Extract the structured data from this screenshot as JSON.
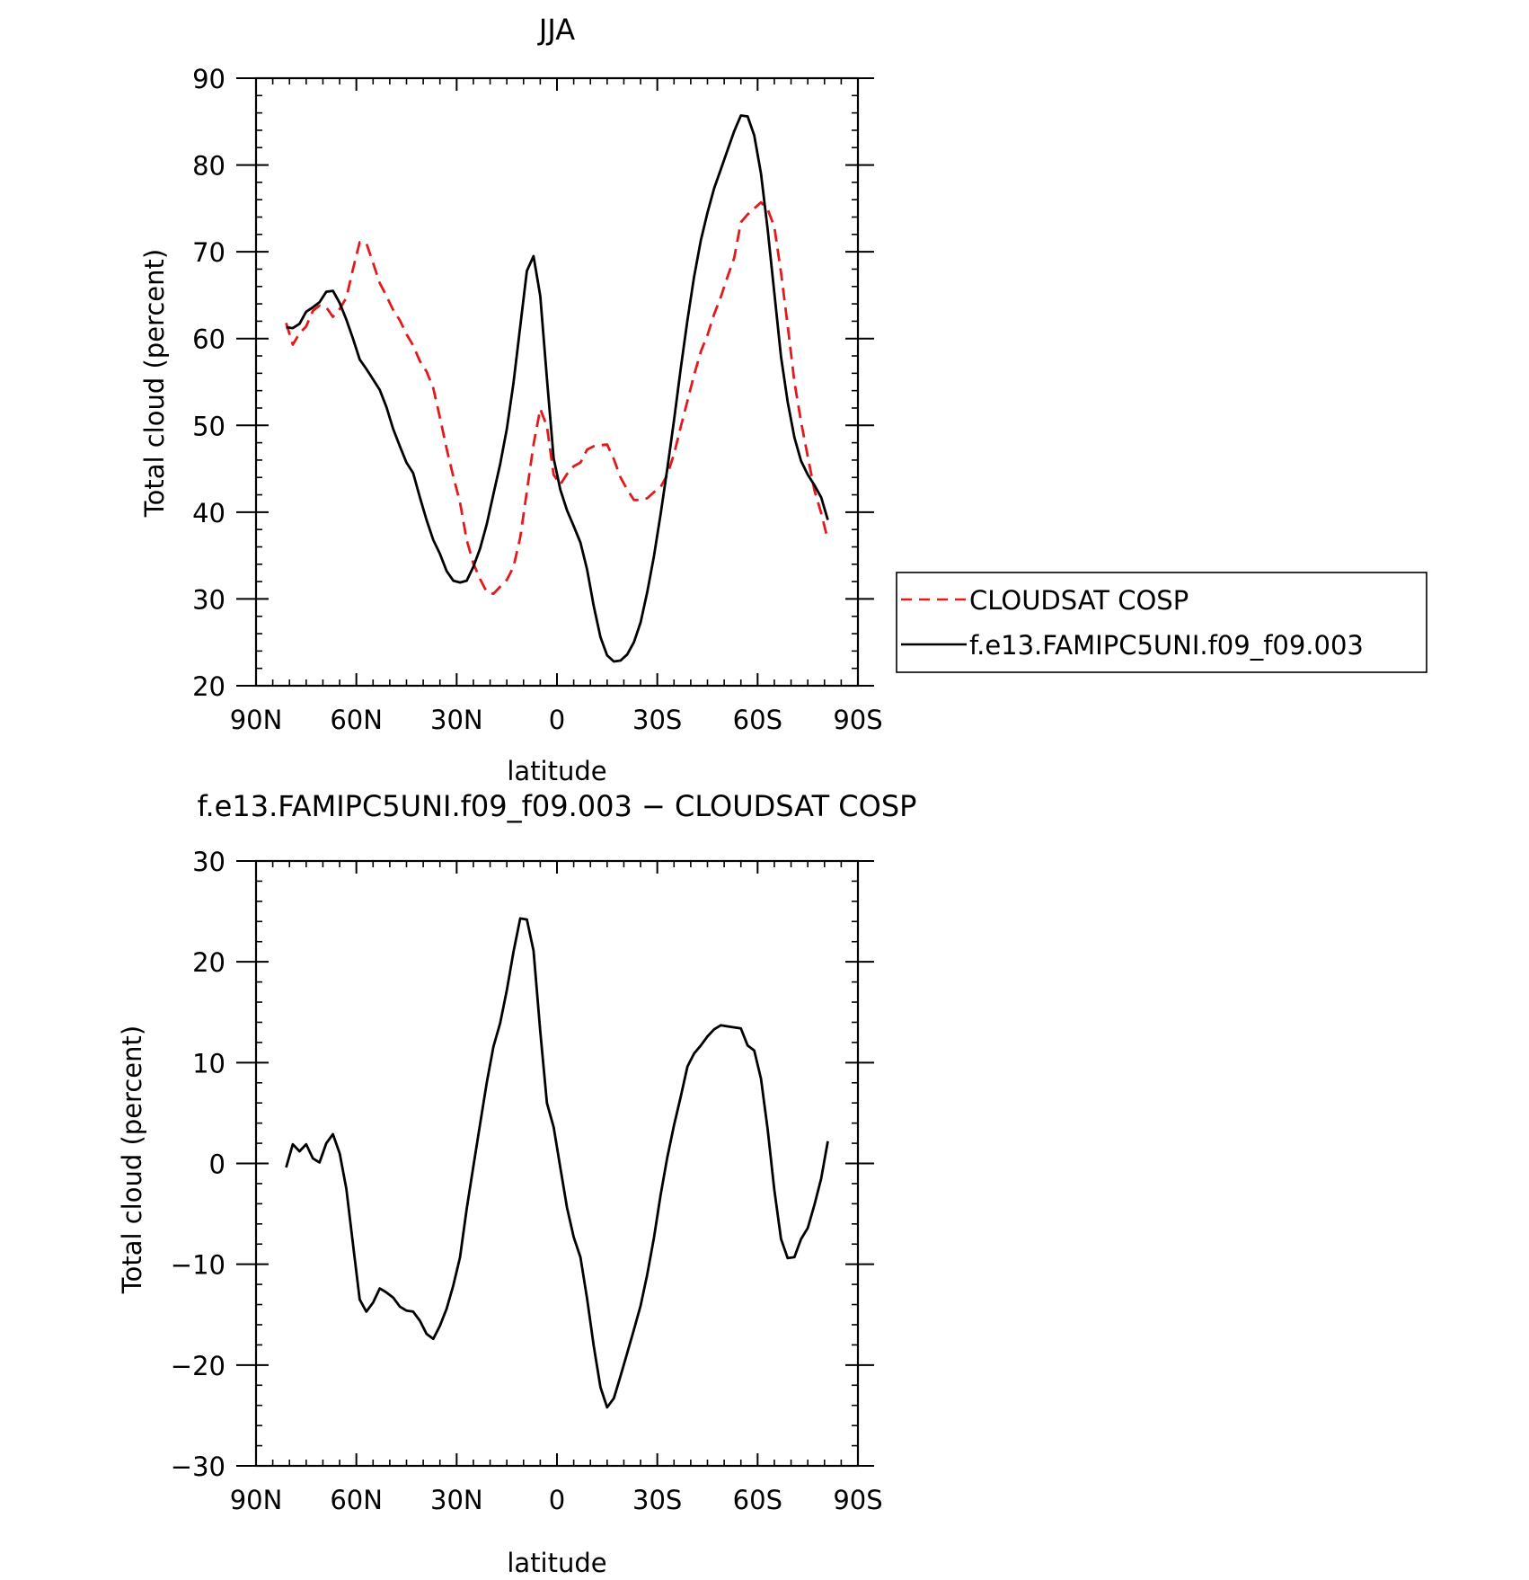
{
  "chart_data": [
    {
      "type": "line",
      "title": "JJA",
      "xlabel": "latitude",
      "ylabel": "Total cloud (percent)",
      "xlim": [
        90,
        -90
      ],
      "ylim": [
        20,
        90
      ],
      "xticks": [
        90,
        60,
        30,
        0,
        -30,
        -60,
        -90
      ],
      "xtick_labels": [
        "90N",
        "60N",
        "30N",
        "0",
        "30S",
        "60S",
        "90S"
      ],
      "yticks": [
        20,
        30,
        40,
        50,
        60,
        70,
        80,
        90
      ],
      "ytick_labels": [
        "20",
        "30",
        "40",
        "50",
        "60",
        "70",
        "80",
        "90"
      ],
      "legend": "right",
      "grid": false,
      "series": [
        {
          "name": "CLOUDSAT COSP",
          "color": "#e31a1c",
          "dash": "dashed",
          "points": [
            [
              81,
              61.8
            ],
            [
              79,
              59.3
            ],
            [
              77,
              60.6
            ],
            [
              75,
              61.4
            ],
            [
              73,
              63.2
            ],
            [
              71,
              63.8
            ],
            [
              69,
              63.6
            ],
            [
              67,
              62.5
            ],
            [
              65,
              63.4
            ],
            [
              63,
              64.7
            ],
            [
              61,
              68.0
            ],
            [
              59,
              71.1
            ],
            [
              57,
              71.0
            ],
            [
              55,
              68.7
            ],
            [
              53,
              66.4
            ],
            [
              51,
              64.9
            ],
            [
              49,
              63.3
            ],
            [
              47,
              62.1
            ],
            [
              45,
              60.5
            ],
            [
              43,
              59.2
            ],
            [
              41,
              57.4
            ],
            [
              39,
              56.2
            ],
            [
              37,
              54.3
            ],
            [
              35,
              50.9
            ],
            [
              33,
              47.3
            ],
            [
              31,
              44.1
            ],
            [
              29,
              41.1
            ],
            [
              27,
              36.8
            ],
            [
              25,
              34.1
            ],
            [
              23,
              32.3
            ],
            [
              21,
              30.8
            ],
            [
              19,
              30.6
            ],
            [
              17,
              31.4
            ],
            [
              15,
              32.2
            ],
            [
              13,
              33.7
            ],
            [
              11,
              37.1
            ],
            [
              9,
              42.4
            ],
            [
              7,
              47.8
            ],
            [
              5,
              51.9
            ],
            [
              3,
              49.9
            ],
            [
              1,
              44.3
            ],
            [
              -1,
              43.2
            ],
            [
              -3,
              44.4
            ],
            [
              -5,
              45.3
            ],
            [
              -7,
              45.7
            ],
            [
              -9,
              47.2
            ],
            [
              -11,
              47.6
            ],
            [
              -13,
              47.7
            ],
            [
              -15,
              47.8
            ],
            [
              -17,
              46.1
            ],
            [
              -19,
              44.0
            ],
            [
              -21,
              42.6
            ],
            [
              -23,
              41.4
            ],
            [
              -25,
              41.4
            ],
            [
              -27,
              41.6
            ],
            [
              -29,
              42.3
            ],
            [
              -31,
              42.9
            ],
            [
              -33,
              44.3
            ],
            [
              -35,
              46.7
            ],
            [
              -37,
              49.8
            ],
            [
              -39,
              52.8
            ],
            [
              -41,
              55.8
            ],
            [
              -43,
              58.5
            ],
            [
              -45,
              60.4
            ],
            [
              -47,
              62.8
            ],
            [
              -49,
              64.8
            ],
            [
              -51,
              67.1
            ],
            [
              -53,
              69.3
            ],
            [
              -55,
              73.4
            ],
            [
              -57,
              74.3
            ],
            [
              -59,
              75.0
            ],
            [
              -61,
              75.7
            ],
            [
              -63,
              74.9
            ],
            [
              -65,
              72.9
            ],
            [
              -67,
              67.6
            ],
            [
              -69,
              61.5
            ],
            [
              -71,
              55.0
            ],
            [
              -73,
              50.4
            ],
            [
              -75,
              46.4
            ],
            [
              -77,
              42.5
            ],
            [
              -79,
              39.9
            ],
            [
              -81,
              36.8
            ]
          ]
        },
        {
          "name": "f.e13.FAMIPC5UNI.f09_f09.003",
          "color": "#000000",
          "dash": "solid",
          "points": [
            [
              81,
              61.3
            ],
            [
              79,
              61.2
            ],
            [
              77,
              61.7
            ],
            [
              75,
              63.1
            ],
            [
              73,
              63.6
            ],
            [
              71,
              64.2
            ],
            [
              69,
              65.4
            ],
            [
              67,
              65.5
            ],
            [
              65,
              64.1
            ],
            [
              63,
              62.2
            ],
            [
              61,
              60.0
            ],
            [
              59,
              57.6
            ],
            [
              57,
              56.5
            ],
            [
              55,
              55.3
            ],
            [
              53,
              54.1
            ],
            [
              51,
              52.1
            ],
            [
              49,
              49.6
            ],
            [
              47,
              47.6
            ],
            [
              45,
              45.7
            ],
            [
              43,
              44.5
            ],
            [
              41,
              41.7
            ],
            [
              39,
              39.1
            ],
            [
              37,
              36.8
            ],
            [
              35,
              35.2
            ],
            [
              33,
              33.2
            ],
            [
              31,
              32.1
            ],
            [
              29,
              31.9
            ],
            [
              27,
              32.1
            ],
            [
              25,
              33.7
            ],
            [
              23,
              35.8
            ],
            [
              21,
              38.6
            ],
            [
              19,
              42.1
            ],
            [
              17,
              45.5
            ],
            [
              15,
              49.6
            ],
            [
              13,
              54.9
            ],
            [
              11,
              61.4
            ],
            [
              9,
              67.8
            ],
            [
              7,
              69.5
            ],
            [
              5,
              64.9
            ],
            [
              3,
              55.4
            ],
            [
              1,
              46.2
            ],
            [
              -1,
              42.6
            ],
            [
              -3,
              40.2
            ],
            [
              -5,
              38.4
            ],
            [
              -7,
              36.5
            ],
            [
              -9,
              33.4
            ],
            [
              -11,
              29.2
            ],
            [
              -13,
              25.6
            ],
            [
              -15,
              23.5
            ],
            [
              -17,
              22.8
            ],
            [
              -19,
              22.9
            ],
            [
              -21,
              23.6
            ],
            [
              -23,
              25.0
            ],
            [
              -25,
              27.3
            ],
            [
              -27,
              30.8
            ],
            [
              -29,
              34.9
            ],
            [
              -31,
              39.8
            ],
            [
              -33,
              45.0
            ],
            [
              -35,
              50.6
            ],
            [
              -37,
              56.5
            ],
            [
              -39,
              62.1
            ],
            [
              -41,
              67.1
            ],
            [
              -43,
              71.3
            ],
            [
              -45,
              74.5
            ],
            [
              -47,
              77.3
            ],
            [
              -49,
              79.5
            ],
            [
              -51,
              81.7
            ],
            [
              -53,
              83.9
            ],
            [
              -55,
              85.7
            ],
            [
              -57,
              85.6
            ],
            [
              -59,
              83.4
            ],
            [
              -61,
              79.0
            ],
            [
              -63,
              72.6
            ],
            [
              -65,
              65.3
            ],
            [
              -67,
              57.9
            ],
            [
              -69,
              52.7
            ],
            [
              -71,
              48.6
            ],
            [
              -73,
              45.9
            ],
            [
              -75,
              44.3
            ],
            [
              -77,
              43.1
            ],
            [
              -79,
              41.7
            ],
            [
              -81,
              39.1
            ]
          ]
        }
      ]
    },
    {
      "type": "line",
      "title": "f.e13.FAMIPC5UNI.f09_f09.003 − CLOUDSAT COSP",
      "xlabel": "latitude",
      "ylabel": "Total cloud (percent)",
      "xlim": [
        90,
        -90
      ],
      "ylim": [
        -30,
        30
      ],
      "xticks": [
        90,
        60,
        30,
        0,
        -30,
        -60,
        -90
      ],
      "xtick_labels": [
        "90N",
        "60N",
        "30N",
        "0",
        "30S",
        "60S",
        "90S"
      ],
      "yticks": [
        -30,
        -20,
        -10,
        0,
        10,
        20,
        30
      ],
      "ytick_labels": [
        "−30",
        "−20",
        "−10",
        "0",
        "10",
        "20",
        "30"
      ],
      "grid": false,
      "series": [
        {
          "color": "#000000",
          "dash": "solid",
          "points": [
            [
              81,
              -0.4
            ],
            [
              79,
              1.9
            ],
            [
              77,
              1.2
            ],
            [
              75,
              1.9
            ],
            [
              73,
              0.5
            ],
            [
              71,
              0.1
            ],
            [
              69,
              2.0
            ],
            [
              67,
              2.9
            ],
            [
              65,
              1.0
            ],
            [
              63,
              -2.5
            ],
            [
              61,
              -8.0
            ],
            [
              59,
              -13.5
            ],
            [
              57,
              -14.7
            ],
            [
              55,
              -13.8
            ],
            [
              53,
              -12.4
            ],
            [
              51,
              -12.8
            ],
            [
              49,
              -13.3
            ],
            [
              47,
              -14.2
            ],
            [
              45,
              -14.6
            ],
            [
              43,
              -14.7
            ],
            [
              41,
              -15.6
            ],
            [
              39,
              -16.9
            ],
            [
              37,
              -17.4
            ],
            [
              35,
              -16.1
            ],
            [
              33,
              -14.4
            ],
            [
              31,
              -12.1
            ],
            [
              29,
              -9.3
            ],
            [
              27,
              -4.5
            ],
            [
              25,
              -0.3
            ],
            [
              23,
              3.9
            ],
            [
              21,
              8.0
            ],
            [
              19,
              11.6
            ],
            [
              17,
              13.9
            ],
            [
              15,
              17.2
            ],
            [
              13,
              21.0
            ],
            [
              11,
              24.3
            ],
            [
              9,
              24.2
            ],
            [
              7,
              21.1
            ],
            [
              5,
              13.1
            ],
            [
              3,
              6.0
            ],
            [
              1,
              3.6
            ],
            [
              -1,
              -0.4
            ],
            [
              -3,
              -4.4
            ],
            [
              -5,
              -7.3
            ],
            [
              -7,
              -9.3
            ],
            [
              -9,
              -13.4
            ],
            [
              -11,
              -18.1
            ],
            [
              -13,
              -22.2
            ],
            [
              -15,
              -24.2
            ],
            [
              -17,
              -23.3
            ],
            [
              -19,
              -21.1
            ],
            [
              -21,
              -18.8
            ],
            [
              -23,
              -16.5
            ],
            [
              -25,
              -14.1
            ],
            [
              -27,
              -11.0
            ],
            [
              -29,
              -7.4
            ],
            [
              -31,
              -3.1
            ],
            [
              -33,
              0.6
            ],
            [
              -35,
              3.8
            ],
            [
              -37,
              6.6
            ],
            [
              -39,
              9.6
            ],
            [
              -41,
              10.9
            ],
            [
              -43,
              11.7
            ],
            [
              -45,
              12.6
            ],
            [
              -47,
              13.3
            ],
            [
              -49,
              13.7
            ],
            [
              -51,
              13.6
            ],
            [
              -53,
              13.5
            ],
            [
              -55,
              13.4
            ],
            [
              -57,
              11.7
            ],
            [
              -59,
              11.2
            ],
            [
              -61,
              8.4
            ],
            [
              -63,
              3.4
            ],
            [
              -65,
              -2.6
            ],
            [
              -67,
              -7.5
            ],
            [
              -69,
              -9.4
            ],
            [
              -71,
              -9.3
            ],
            [
              -73,
              -7.5
            ],
            [
              -75,
              -6.4
            ],
            [
              -77,
              -4.1
            ],
            [
              -79,
              -1.5
            ],
            [
              -81,
              2.2
            ]
          ]
        }
      ]
    }
  ]
}
